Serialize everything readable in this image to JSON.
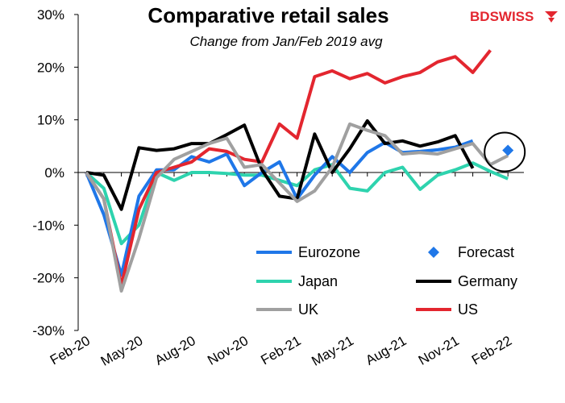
{
  "brand": {
    "part1": "BD",
    "part2": "SWISS",
    "color_part1": "#e3262f",
    "color_part2": "#e3262f"
  },
  "chart_data": {
    "type": "line",
    "title": "Comparative retail sales",
    "subtitle": "Change from Jan/Feb 2019 avg",
    "xlabel": "",
    "ylabel": "",
    "ylim": [
      -30,
      30
    ],
    "y_ticks": [
      "-30%",
      "-20%",
      "-10%",
      "0%",
      "10%",
      "20%",
      "30%"
    ],
    "y_tick_values": [
      -30,
      -20,
      -10,
      0,
      10,
      20,
      30
    ],
    "x_tick_labels": [
      "Feb-20",
      "May-20",
      "Aug-20",
      "Nov-20",
      "Feb-21",
      "May-21",
      "Aug-21",
      "Nov-21",
      "Feb-22"
    ],
    "x": [
      "Feb-20",
      "Mar-20",
      "Apr-20",
      "May-20",
      "Jun-20",
      "Jul-20",
      "Aug-20",
      "Sep-20",
      "Oct-20",
      "Nov-20",
      "Dec-20",
      "Jan-21",
      "Feb-21",
      "Mar-21",
      "Apr-21",
      "May-21",
      "Jun-21",
      "Jul-21",
      "Aug-21",
      "Sep-21",
      "Oct-21",
      "Nov-21",
      "Dec-21",
      "Jan-22",
      "Feb-22"
    ],
    "grid": false,
    "legend_position": "bottom-right",
    "series": [
      {
        "name": "Eurozone",
        "color": "#1f77e8",
        "values": [
          0,
          -8,
          -19.5,
          -4.5,
          0.5,
          0.5,
          3,
          2,
          3.5,
          -2.5,
          0,
          2,
          -5,
          -0.5,
          3,
          0,
          3.8,
          5.7,
          3.8,
          4,
          4.3,
          4.8,
          6,
          null,
          null
        ]
      },
      {
        "name": "Japan",
        "color": "#2ed3ae",
        "values": [
          0,
          -3,
          -13.5,
          -10,
          0,
          -1.5,
          0,
          0,
          -0.2,
          -0.5,
          -0.5,
          -1.5,
          -2.5,
          0.5,
          1.5,
          -3,
          -3.5,
          0,
          1,
          -3.2,
          -0.5,
          0.5,
          1.8,
          0.2,
          -1.2
        ]
      },
      {
        "name": "Germany",
        "color": "#000000",
        "values": [
          0,
          -0.5,
          -7,
          4.7,
          4.2,
          4.5,
          5.5,
          5.5,
          7.2,
          9,
          0.5,
          -4.5,
          -5,
          7.3,
          0,
          4.5,
          9.8,
          5.5,
          6,
          5,
          5.8,
          7,
          0.8,
          null,
          null
        ]
      },
      {
        "name": "UK",
        "color": "#a0a0a0",
        "values": [
          0,
          -5,
          -22.5,
          -12.5,
          -1,
          2.5,
          4,
          5.5,
          6.5,
          1,
          1.5,
          -2,
          -5.5,
          -3.5,
          1,
          9.2,
          8,
          7,
          3.5,
          3.8,
          3.5,
          4.5,
          5.5,
          1.5,
          3.2
        ]
      },
      {
        "name": "US",
        "color": "#e3262f",
        "values": [
          0,
          -5,
          -21.5,
          -7,
          0,
          1,
          2,
          4.5,
          4,
          2.5,
          2,
          9.2,
          6.5,
          18.2,
          19.3,
          17.8,
          18.8,
          17,
          18.2,
          19,
          21,
          22,
          19,
          23.2,
          null
        ]
      },
      {
        "name": "Forecast",
        "color": "#1f77e8",
        "marker": "diamond",
        "points": [
          {
            "x": "Feb-22",
            "y": 4.2
          }
        ]
      }
    ]
  }
}
